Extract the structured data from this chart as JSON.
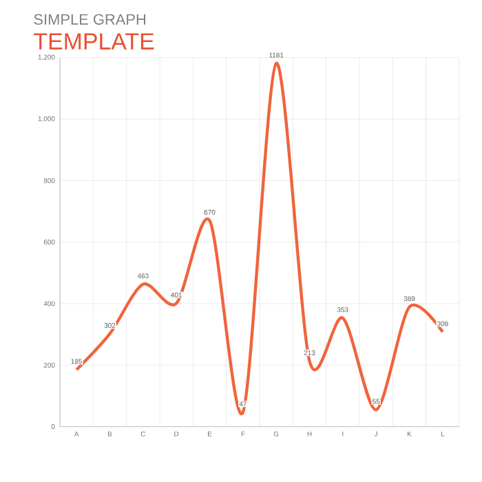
{
  "chart_data": {
    "type": "line",
    "title": "SIMPLE GRAPH",
    "subtitle": "TEMPLATE",
    "categories": [
      "A",
      "B",
      "C",
      "D",
      "E",
      "F",
      "G",
      "H",
      "I",
      "J",
      "K",
      "L"
    ],
    "series": [
      {
        "color": "#f0643c",
        "values": [
          185,
          302,
          463,
          401,
          670,
          47,
          1181,
          213,
          353,
          55,
          389,
          308
        ]
      }
    ],
    "ylim": [
      0,
      1200
    ],
    "yticks": [
      0,
      {
        "value": 200,
        "label": "200"
      },
      {
        "value": 400,
        "label": "400"
      },
      {
        "value": 600,
        "label": "600"
      },
      {
        "value": 800,
        "label": "800"
      },
      {
        "value": 1000,
        "label": "1,000"
      },
      {
        "value": 1200,
        "label": "1,200"
      }
    ],
    "grid": true,
    "data_labels": true,
    "marker": "none",
    "line_style": "solid"
  }
}
